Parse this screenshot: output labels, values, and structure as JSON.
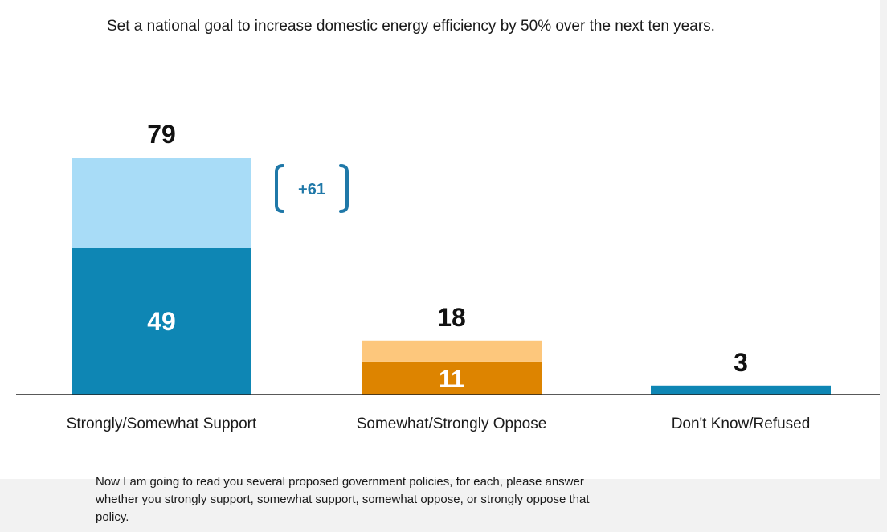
{
  "question": "Set a national goal to increase domestic energy efficiency by 50% over the next ten years.",
  "footnote": "Now I am going to read you several proposed government policies, for each, please answer whether you strongly support, somewhat support, somewhat oppose, or strongly oppose that policy.",
  "colors": {
    "support_strong": "#0e86b4",
    "support_somewhat": "#a8dcf7",
    "oppose_strong": "#dd8400",
    "oppose_somewhat": "#fdc77c",
    "dk": "#0e86b4",
    "bracket": "#1f78a8",
    "total": "#111111",
    "inner": "#ffffff"
  },
  "chart_data": {
    "type": "bar",
    "stacked": true,
    "categories": [
      "Strongly/Somewhat Support",
      "Somewhat/Strongly Oppose",
      "Don't Know/Refused"
    ],
    "series": [
      {
        "values": [
          49,
          11,
          3
        ]
      },
      {
        "values": [
          30,
          7,
          0
        ]
      }
    ],
    "totals": [
      79,
      18,
      3
    ],
    "inner_labels": [
      "49",
      "11",
      ""
    ],
    "annotation": "+61",
    "ylim": [
      0,
      79
    ]
  }
}
